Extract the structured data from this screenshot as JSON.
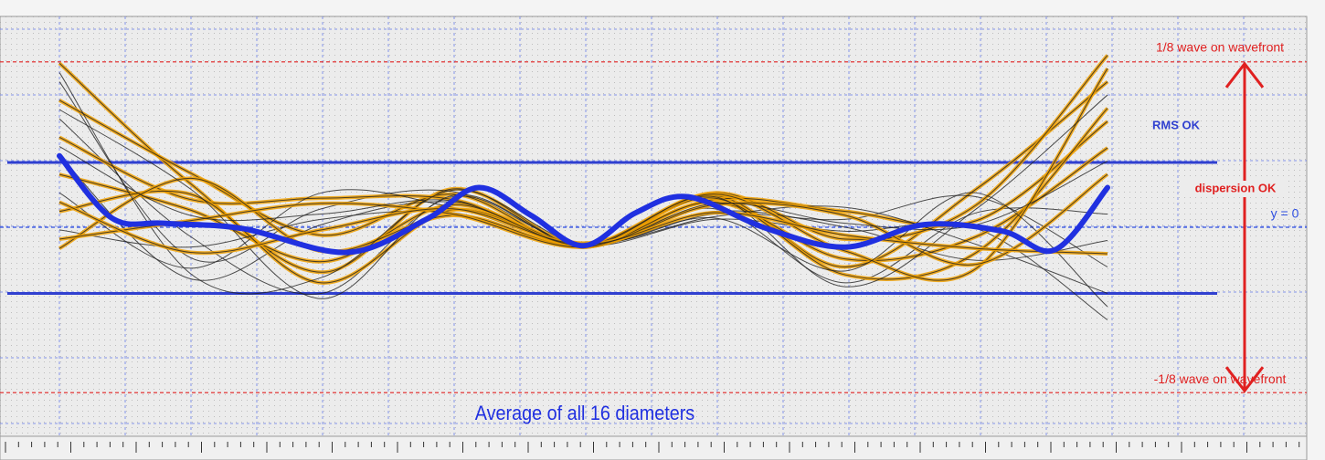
{
  "chart_data": {
    "type": "line",
    "x": [
      -1,
      -0.75,
      -0.5,
      -0.25,
      0,
      0.25,
      0.5,
      0.75,
      1
    ],
    "xlim": [
      -1,
      1
    ],
    "ylim": [
      -0.158,
      0.158
    ],
    "highlight_color": "#f0a000",
    "series": [
      {
        "color": "#222222",
        "values": [
          0.124,
          0.033,
          -0.034,
          0.029,
          -0.014,
          0.024,
          -0.03,
          0.029,
          0.11
        ]
      },
      {
        "color": "#222222",
        "values": [
          0.11,
          -0.023,
          0.014,
          0.027,
          -0.013,
          0.01,
          0.006,
          0.023,
          -0.03
        ]
      },
      {
        "color": "#222222",
        "values": [
          0.096,
          0.041,
          -0.006,
          0.025,
          -0.015,
          0.026,
          -0.009,
          0.017,
          0.13
        ]
      },
      {
        "color": "#222222",
        "values": [
          0.082,
          -0.007,
          -0.05,
          0.023,
          -0.014,
          0.014,
          -0.042,
          0.011,
          0.01
        ]
      },
      {
        "color": "#222222",
        "values": [
          0.068,
          0.021,
          0.022,
          0.021,
          -0.012,
          0.021,
          0.012,
          0.005,
          0.08
        ]
      },
      {
        "color": "#222222",
        "values": [
          0.054,
          -0.039,
          0.002,
          0.019,
          -0.014,
          0.006,
          -0.003,
          -0.001,
          -0.07
        ]
      },
      {
        "color": "#222222",
        "values": [
          0.04,
          0.013,
          -0.026,
          0.017,
          -0.015,
          0.019,
          -0.024,
          -0.007,
          0.06
        ]
      },
      {
        "color": "#222222",
        "values": [
          0.026,
          -0.031,
          0.026,
          0.015,
          -0.013,
          0.008,
          0.015,
          -0.013,
          -0.05
        ]
      },
      {
        "color": "#222222",
        "values": [
          0.012,
          0.025,
          -0.042,
          0.013,
          -0.014,
          0.022,
          -0.036,
          -0.019,
          0.09
        ]
      },
      {
        "color": "#222222",
        "values": [
          -0.002,
          -0.015,
          0.006,
          0.011,
          -0.015,
          0.012,
          0.0,
          -0.025,
          -0.01
        ]
      },
      {
        "color": "#222222",
        "values": [
          -0.016,
          0.037,
          -0.018,
          0.009,
          -0.014,
          0.025,
          -0.018,
          -0.031,
          0.12
        ]
      },
      {
        "color": "#222222",
        "values": [
          0.117,
          -0.035,
          -0.038,
          0.028,
          -0.013,
          0.007,
          -0.033,
          0.026,
          -0.06
        ]
      },
      {
        "color": "#222222",
        "values": [
          -0.009,
          0.005,
          0.018,
          0.01,
          -0.015,
          0.017,
          0.009,
          -0.028,
          0.04
        ]
      },
      {
        "color": "#222222",
        "values": [
          0.089,
          0.029,
          -0.054,
          0.024,
          -0.014,
          0.023,
          -0.045,
          0.014,
          0.1
        ]
      },
      {
        "color": "#222222",
        "values": [
          0.019,
          -0.019,
          -0.002,
          0.014,
          -0.013,
          0.011,
          -0.006,
          -0.016,
          -0.02
        ]
      },
      {
        "color": "#222222",
        "values": [
          0.061,
          0.009,
          0.01,
          0.02,
          -0.014,
          0.018,
          0.003,
          0.002,
          0.05
        ]
      }
    ],
    "average": {
      "name": "Average of all 16 diameters",
      "color": "#2030e0",
      "x": [
        -1,
        -0.9,
        -0.8,
        -0.65,
        -0.45,
        -0.3,
        -0.2,
        -0.1,
        0,
        0.1,
        0.2,
        0.35,
        0.5,
        0.65,
        0.8,
        0.9,
        1
      ],
      "values": [
        0.054,
        0.007,
        0.003,
        -0.001,
        -0.019,
        0.006,
        0.03,
        0.009,
        -0.014,
        0.011,
        0.023,
        -0.001,
        -0.015,
        0.002,
        -0.003,
        -0.017,
        0.03
      ]
    },
    "reference_lines": [
      {
        "value": 0.125,
        "label": "1/8 wave on wavefront",
        "color": "#e02020"
      },
      {
        "value": -0.125,
        "label": "-1/8 wave on wavefront",
        "color": "#e02020"
      },
      {
        "value": 0,
        "label": "y = 0",
        "color": "#3050e0"
      }
    ],
    "rms_band": {
      "label": "RMS OK",
      "color": "#3040d0",
      "values": [
        0.049,
        -0.05
      ]
    },
    "dispersion": {
      "label": "dispersion OK",
      "color": "#e02020"
    }
  }
}
